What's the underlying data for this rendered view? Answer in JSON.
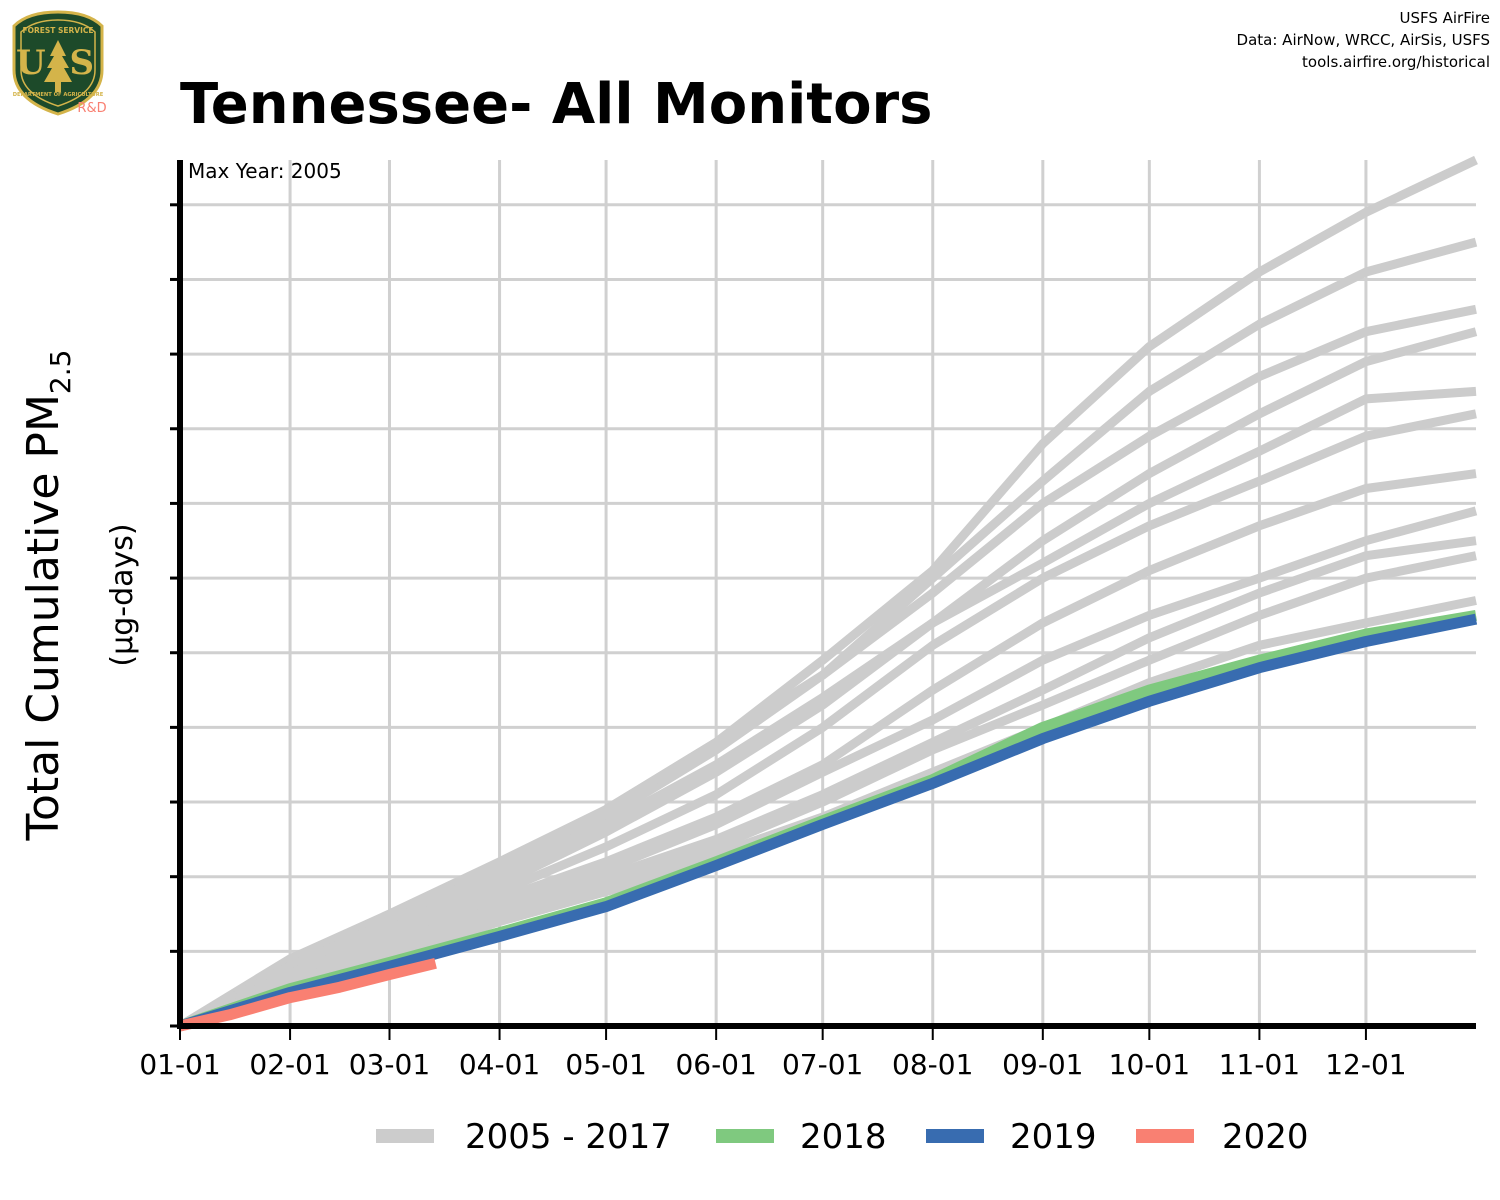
{
  "header": {
    "title": "Tennessee- All Monitors",
    "credit_lines": [
      "USFS AirFire",
      "Data: AirNow, WRCC, AirSis, USFS",
      "tools.airfire.org/historical"
    ],
    "logo": {
      "top_text": "FOREST SERVICE",
      "letters": "U S",
      "bottom_text": "DEPARTMENT OF AGRICULTURE",
      "badge": "R&D"
    }
  },
  "colors": {
    "historical": "#cccccc",
    "y2018": "#7fc97f",
    "y2019": "#386cb0",
    "y2020": "#f98072",
    "logo_green": "#1d4a2a",
    "logo_gold": "#d4b44a",
    "logo_badge": "#f98072"
  },
  "chart_data": {
    "type": "line",
    "title": "Tennessee- All Monitors",
    "annotation": "Max Year: 2005",
    "ylabel": {
      "main": "Total Cumulative PM",
      "sub": "2.5",
      "unit": "(µg-days)"
    },
    "xlabel": "",
    "x_ticks": [
      "01-01",
      "02-01",
      "03-01",
      "04-01",
      "05-01",
      "06-01",
      "07-01",
      "08-01",
      "09-01",
      "10-01",
      "11-01",
      "12-01"
    ],
    "x_tick_days": [
      1,
      32,
      60,
      91,
      121,
      152,
      182,
      213,
      244,
      274,
      305,
      335
    ],
    "xlim": [
      1,
      366
    ],
    "ylim": [
      0,
      116
    ],
    "y_tick_values": [
      0,
      10,
      20,
      30,
      40,
      50,
      60,
      70,
      80,
      90,
      100,
      110
    ],
    "y_tick_labels_shown": false,
    "grid": true,
    "legend": {
      "position": "bottom",
      "entries": [
        {
          "label": "2005 - 2017",
          "color_key": "historical"
        },
        {
          "label": "2018",
          "color_key": "y2018"
        },
        {
          "label": "2019",
          "color_key": "y2019"
        },
        {
          "label": "2020",
          "color_key": "y2020"
        }
      ]
    },
    "series": [
      {
        "group": "2005 - 2017",
        "color_key": "historical",
        "x": [
          1,
          32,
          60,
          91,
          121,
          152,
          182,
          213,
          244,
          274,
          305,
          335,
          366
        ],
        "y": [
          0,
          9,
          15,
          22,
          29,
          38,
          49,
          61,
          78,
          91,
          101,
          109,
          116
        ]
      },
      {
        "group": "2005 - 2017",
        "color_key": "historical",
        "x": [
          1,
          32,
          60,
          91,
          121,
          152,
          182,
          213,
          244,
          274,
          305,
          335,
          366
        ],
        "y": [
          0,
          8,
          14,
          21,
          28,
          37,
          47,
          60,
          73,
          85,
          94,
          101,
          105
        ]
      },
      {
        "group": "2005 - 2017",
        "color_key": "historical",
        "x": [
          1,
          32,
          60,
          91,
          121,
          152,
          182,
          213,
          244,
          274,
          305,
          335,
          366
        ],
        "y": [
          0,
          8,
          14,
          21,
          29,
          38,
          47,
          58,
          70,
          79,
          87,
          93,
          96
        ]
      },
      {
        "group": "2005 - 2017",
        "color_key": "historical",
        "x": [
          1,
          32,
          60,
          91,
          121,
          152,
          182,
          213,
          244,
          274,
          305,
          335,
          366
        ],
        "y": [
          0,
          8,
          13,
          20,
          27,
          35,
          44,
          54,
          65,
          74,
          82,
          89,
          93
        ]
      },
      {
        "group": "2005 - 2017",
        "color_key": "historical",
        "x": [
          1,
          32,
          60,
          91,
          121,
          152,
          182,
          213,
          244,
          274,
          305,
          335,
          366
        ],
        "y": [
          0,
          7,
          13,
          19,
          26,
          34,
          43,
          54,
          62,
          70,
          77,
          84,
          85
        ]
      },
      {
        "group": "2005 - 2017",
        "color_key": "historical",
        "x": [
          1,
          32,
          60,
          91,
          121,
          152,
          182,
          213,
          244,
          274,
          305,
          335,
          366
        ],
        "y": [
          0,
          7,
          12,
          18,
          24,
          31,
          40,
          51,
          60,
          67,
          73,
          79,
          82
        ]
      },
      {
        "group": "2005 - 2017",
        "color_key": "historical",
        "x": [
          1,
          32,
          60,
          91,
          121,
          152,
          182,
          213,
          244,
          274,
          305,
          335,
          366
        ],
        "y": [
          0,
          7,
          12,
          17,
          22,
          28,
          35,
          45,
          54,
          61,
          67,
          72,
          74
        ]
      },
      {
        "group": "2005 - 2017",
        "color_key": "historical",
        "x": [
          1,
          32,
          60,
          91,
          121,
          152,
          182,
          213,
          244,
          274,
          305,
          335,
          366
        ],
        "y": [
          0,
          6,
          11,
          16,
          21,
          27,
          34,
          41,
          49,
          55,
          60,
          65,
          69
        ]
      },
      {
        "group": "2005 - 2017",
        "color_key": "historical",
        "x": [
          1,
          32,
          60,
          91,
          121,
          152,
          182,
          213,
          244,
          274,
          305,
          335,
          366
        ],
        "y": [
          0,
          6,
          11,
          16,
          20,
          25,
          31,
          38,
          45,
          52,
          58,
          63,
          65
        ]
      },
      {
        "group": "2005 - 2017",
        "color_key": "historical",
        "x": [
          1,
          32,
          60,
          91,
          121,
          152,
          182,
          213,
          244,
          274,
          305,
          335,
          366
        ],
        "y": [
          0,
          6,
          10,
          15,
          19,
          24,
          30,
          37,
          43,
          49,
          55,
          60,
          63
        ]
      },
      {
        "group": "2005 - 2017",
        "color_key": "historical",
        "x": [
          1,
          32,
          60,
          91,
          121,
          152,
          182,
          213,
          244,
          274,
          305,
          335,
          366
        ],
        "y": [
          0,
          6,
          10,
          15,
          19,
          23,
          28,
          34,
          40,
          46,
          51,
          54,
          57
        ]
      },
      {
        "group": "2005 - 2017",
        "color_key": "historical",
        "x": [
          1,
          32,
          60,
          91,
          121,
          152,
          182,
          213,
          244,
          274,
          305,
          335,
          366
        ],
        "y": [
          0,
          5,
          9,
          14,
          18,
          22,
          27,
          33,
          39,
          44,
          48,
          52,
          55
        ]
      },
      {
        "name": "2018",
        "color_key": "y2018",
        "x": [
          1,
          32,
          60,
          91,
          121,
          152,
          182,
          213,
          244,
          274,
          305,
          335,
          366
        ],
        "y": [
          0,
          5,
          8.5,
          12.5,
          16.5,
          22,
          27.5,
          33,
          40,
          45,
          49,
          52.5,
          55
        ]
      },
      {
        "name": "2019",
        "color_key": "y2019",
        "x": [
          1,
          32,
          60,
          91,
          121,
          152,
          182,
          213,
          244,
          274,
          305,
          335,
          366
        ],
        "y": [
          0,
          4.5,
          8,
          12,
          16,
          21.5,
          27,
          32.5,
          38.5,
          43.5,
          48,
          51.5,
          54.5
        ]
      },
      {
        "name": "2020",
        "color_key": "y2020",
        "x": [
          1,
          15,
          32,
          46,
          60,
          73
        ],
        "y": [
          0,
          1.5,
          3.8,
          5.2,
          6.9,
          8.4
        ]
      }
    ]
  }
}
